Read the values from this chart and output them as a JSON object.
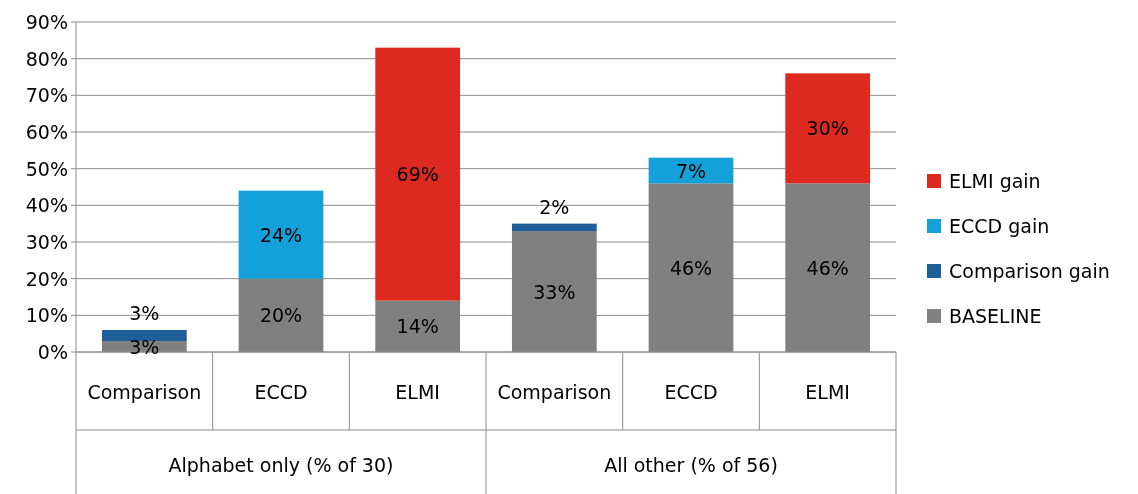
{
  "chart_data": {
    "type": "bar",
    "stacked": true,
    "categories": [
      "Comparison",
      "ECCD",
      "ELMI",
      "Comparison",
      "ECCD",
      "ELMI"
    ],
    "annotations": [
      "Alphabet only (% of 30)",
      "All other (% of 56)"
    ],
    "series": [
      {
        "name": "BASELINE",
        "color": "#808080",
        "values": [
          3,
          20,
          14,
          33,
          46,
          46
        ],
        "value_labels": [
          "3%",
          "20%",
          "14%",
          "33%",
          "46%",
          "46%"
        ]
      },
      {
        "name": "Comparison gain",
        "color": "#1f5f99",
        "values": [
          3,
          null,
          null,
          2,
          null,
          null
        ],
        "value_labels": [
          "3%",
          null,
          null,
          "2%",
          null,
          null
        ]
      },
      {
        "name": "ECCD gain",
        "color": "#14a0d8",
        "values": [
          null,
          24,
          null,
          null,
          7,
          null
        ],
        "value_labels": [
          null,
          "24%",
          null,
          null,
          "7%",
          null
        ]
      },
      {
        "name": "ELMI gain",
        "color": "#dc2a20",
        "values": [
          null,
          null,
          69,
          null,
          null,
          30
        ],
        "value_labels": [
          null,
          null,
          "69%",
          null,
          null,
          "30%"
        ]
      }
    ],
    "ylim": [
      0,
      90
    ],
    "yticks": [
      {
        "value": 0,
        "label": "0%"
      },
      {
        "value": 10,
        "label": "10%"
      },
      {
        "value": 20,
        "label": "20%"
      },
      {
        "value": 30,
        "label": "30%"
      },
      {
        "value": 40,
        "label": "40%"
      },
      {
        "value": 50,
        "label": "50%"
      },
      {
        "value": 60,
        "label": "60%"
      },
      {
        "value": 70,
        "label": "70%"
      },
      {
        "value": 80,
        "label": "80%"
      },
      {
        "value": 90,
        "label": "90%"
      }
    ],
    "grid": "y",
    "legend": "right"
  }
}
